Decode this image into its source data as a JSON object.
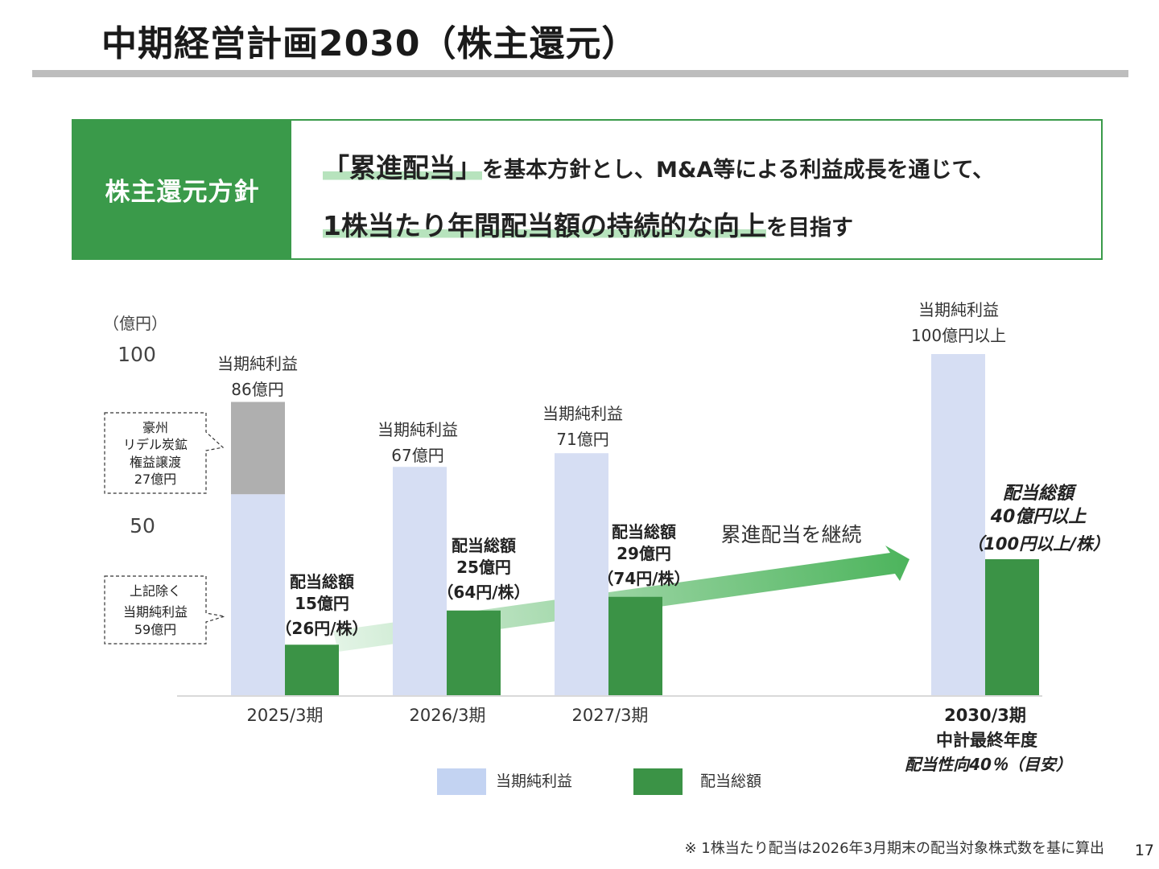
{
  "slide": {
    "title": "中期経営計画2030（株主還元）",
    "page_number": "17",
    "footnote": "※ 1株当たり配当は2026年3月期末の配当対象株式数を基に算出"
  },
  "policy": {
    "label": "株主還元方針",
    "line1_highlight": "「累進配当」",
    "line1_rest": "を基本方針とし、M&A等による利益成長を通じて、",
    "line2_highlight": "1株当たり年間配当額の持続的な向上",
    "line2_rest": "を目指す"
  },
  "colors": {
    "accent_green": "#3a9a4a",
    "profit_bar": "#d6def3",
    "profit_excluded_bar": "#afafaf",
    "dividend_bar": "#3b9346",
    "legend_profit": "#c3d3f2",
    "rule_gray": "#bdbdbd"
  },
  "chart_data": {
    "type": "bar",
    "unit_label": "（億円）",
    "y_ticks": [
      {
        "value": 100,
        "label": "100"
      },
      {
        "value": 50,
        "label": "50"
      }
    ],
    "ylim": [
      0,
      100
    ],
    "categories": [
      {
        "label": "2025/3期"
      },
      {
        "label": "2026/3期"
      },
      {
        "label": "2027/3期"
      },
      {
        "label": "2030/3期",
        "sub1": "中計最終年度",
        "sub2": "配当性向40％（目安）"
      }
    ],
    "series": [
      {
        "name": "当期純利益",
        "values": [
          86,
          67,
          71,
          100
        ]
      },
      {
        "name": "配当総額",
        "values": [
          15,
          25,
          29,
          40
        ]
      }
    ],
    "profit_breakdown_2025": {
      "excluded_coal": 27,
      "remaining": 59
    },
    "profit_labels": [
      {
        "title": "当期純利益",
        "value": "86億円"
      },
      {
        "title": "当期純利益",
        "value": "67億円"
      },
      {
        "title": "当期純利益",
        "value": "71億円"
      },
      {
        "title": "当期純利益",
        "value": "100億円以上"
      }
    ],
    "dividend_labels": [
      {
        "title": "配当総額",
        "value": "15億円",
        "per_share": "（26円/株）"
      },
      {
        "title": "配当総額",
        "value": "25億円",
        "per_share": "（64円/株）"
      },
      {
        "title": "配当総額",
        "value": "29億円",
        "per_share": "（74円/株）"
      },
      {
        "title": "配当総額",
        "value": "40億円以上",
        "per_share": "（100円以上/株）"
      }
    ],
    "callouts": [
      {
        "lines": [
          "豪州",
          "リデル炭鉱",
          "権益譲渡",
          "27億円"
        ]
      },
      {
        "lines": [
          "上記除く",
          "当期純利益",
          "59億円"
        ]
      }
    ],
    "arrow_label": "累進配当を継続",
    "legend": [
      "当期純利益",
      "配当総額"
    ]
  }
}
